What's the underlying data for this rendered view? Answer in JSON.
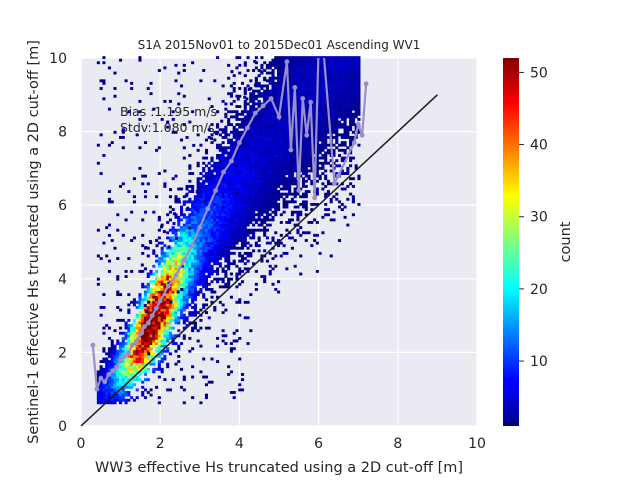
{
  "chart_data": {
    "type": "heatmap",
    "title": "S1A 2015Nov01 to 2015Dec01 Ascending WV1",
    "xlabel": "WW3 effective Hs truncated using a 2D cut-off [m]",
    "ylabel": "Sentinel-1 effective Hs truncated using a 2D cut-off [m]",
    "xlim": [
      0,
      10
    ],
    "ylim": [
      0,
      10
    ],
    "xticks": [
      "0",
      "2",
      "4",
      "6",
      "8",
      "10"
    ],
    "yticks": [
      "0",
      "2",
      "4",
      "6",
      "8",
      "10"
    ],
    "grid": true,
    "colorbar": {
      "label": "count",
      "colormap": "jet",
      "range": [
        1,
        52
      ],
      "ticks": [
        "10",
        "20",
        "30",
        "40",
        "50"
      ]
    },
    "annotations": [
      "Bias :1.195 m/s",
      "Stdv:1.080 m/s"
    ],
    "identity_line": {
      "x": [
        0,
        9
      ],
      "y": [
        0,
        9
      ],
      "color": "#1a1a1a"
    },
    "mean_curve": {
      "color": "#9a8fc8",
      "x": [
        0.3,
        0.4,
        0.5,
        0.6,
        0.7,
        0.8,
        0.9,
        1.0,
        1.1,
        1.2,
        1.3,
        1.4,
        1.5,
        1.6,
        1.7,
        1.8,
        1.9,
        2.0,
        2.2,
        2.4,
        2.6,
        2.8,
        3.0,
        3.2,
        3.4,
        3.6,
        3.8,
        4.0,
        4.2,
        4.4,
        4.6,
        4.8,
        5.0,
        5.2,
        5.3,
        5.4,
        5.5,
        5.6,
        5.7,
        5.8,
        5.9,
        6.0,
        6.1,
        6.4,
        6.5,
        6.9,
        7.0,
        7.1,
        7.2
      ],
      "y": [
        2.2,
        1.0,
        1.3,
        1.2,
        1.4,
        1.5,
        1.6,
        1.8,
        1.9,
        2.0,
        2.2,
        2.3,
        2.5,
        2.7,
        2.8,
        3.0,
        3.2,
        3.4,
        3.8,
        4.1,
        4.5,
        4.9,
        5.4,
        5.9,
        6.4,
        6.9,
        7.2,
        7.7,
        8.1,
        8.5,
        8.7,
        8.9,
        8.4,
        9.9,
        7.5,
        9.2,
        6.4,
        8.9,
        7.9,
        8.8,
        6.2,
        10.3,
        10.5,
        6.6,
        6.8,
        7.7,
        8.2,
        7.9,
        9.3
      ]
    },
    "density": {
      "ridge": [
        [
          0.5,
          0.95
        ],
        [
          1.0,
          1.5
        ],
        [
          1.5,
          2.3
        ],
        [
          1.8,
          2.9
        ],
        [
          2.2,
          3.6
        ],
        [
          2.6,
          4.4
        ],
        [
          3.0,
          5.1
        ],
        [
          3.5,
          5.9
        ],
        [
          4.0,
          6.6
        ]
      ],
      "peak": {
        "x": 1.75,
        "y": 2.3,
        "count": 52
      }
    }
  }
}
